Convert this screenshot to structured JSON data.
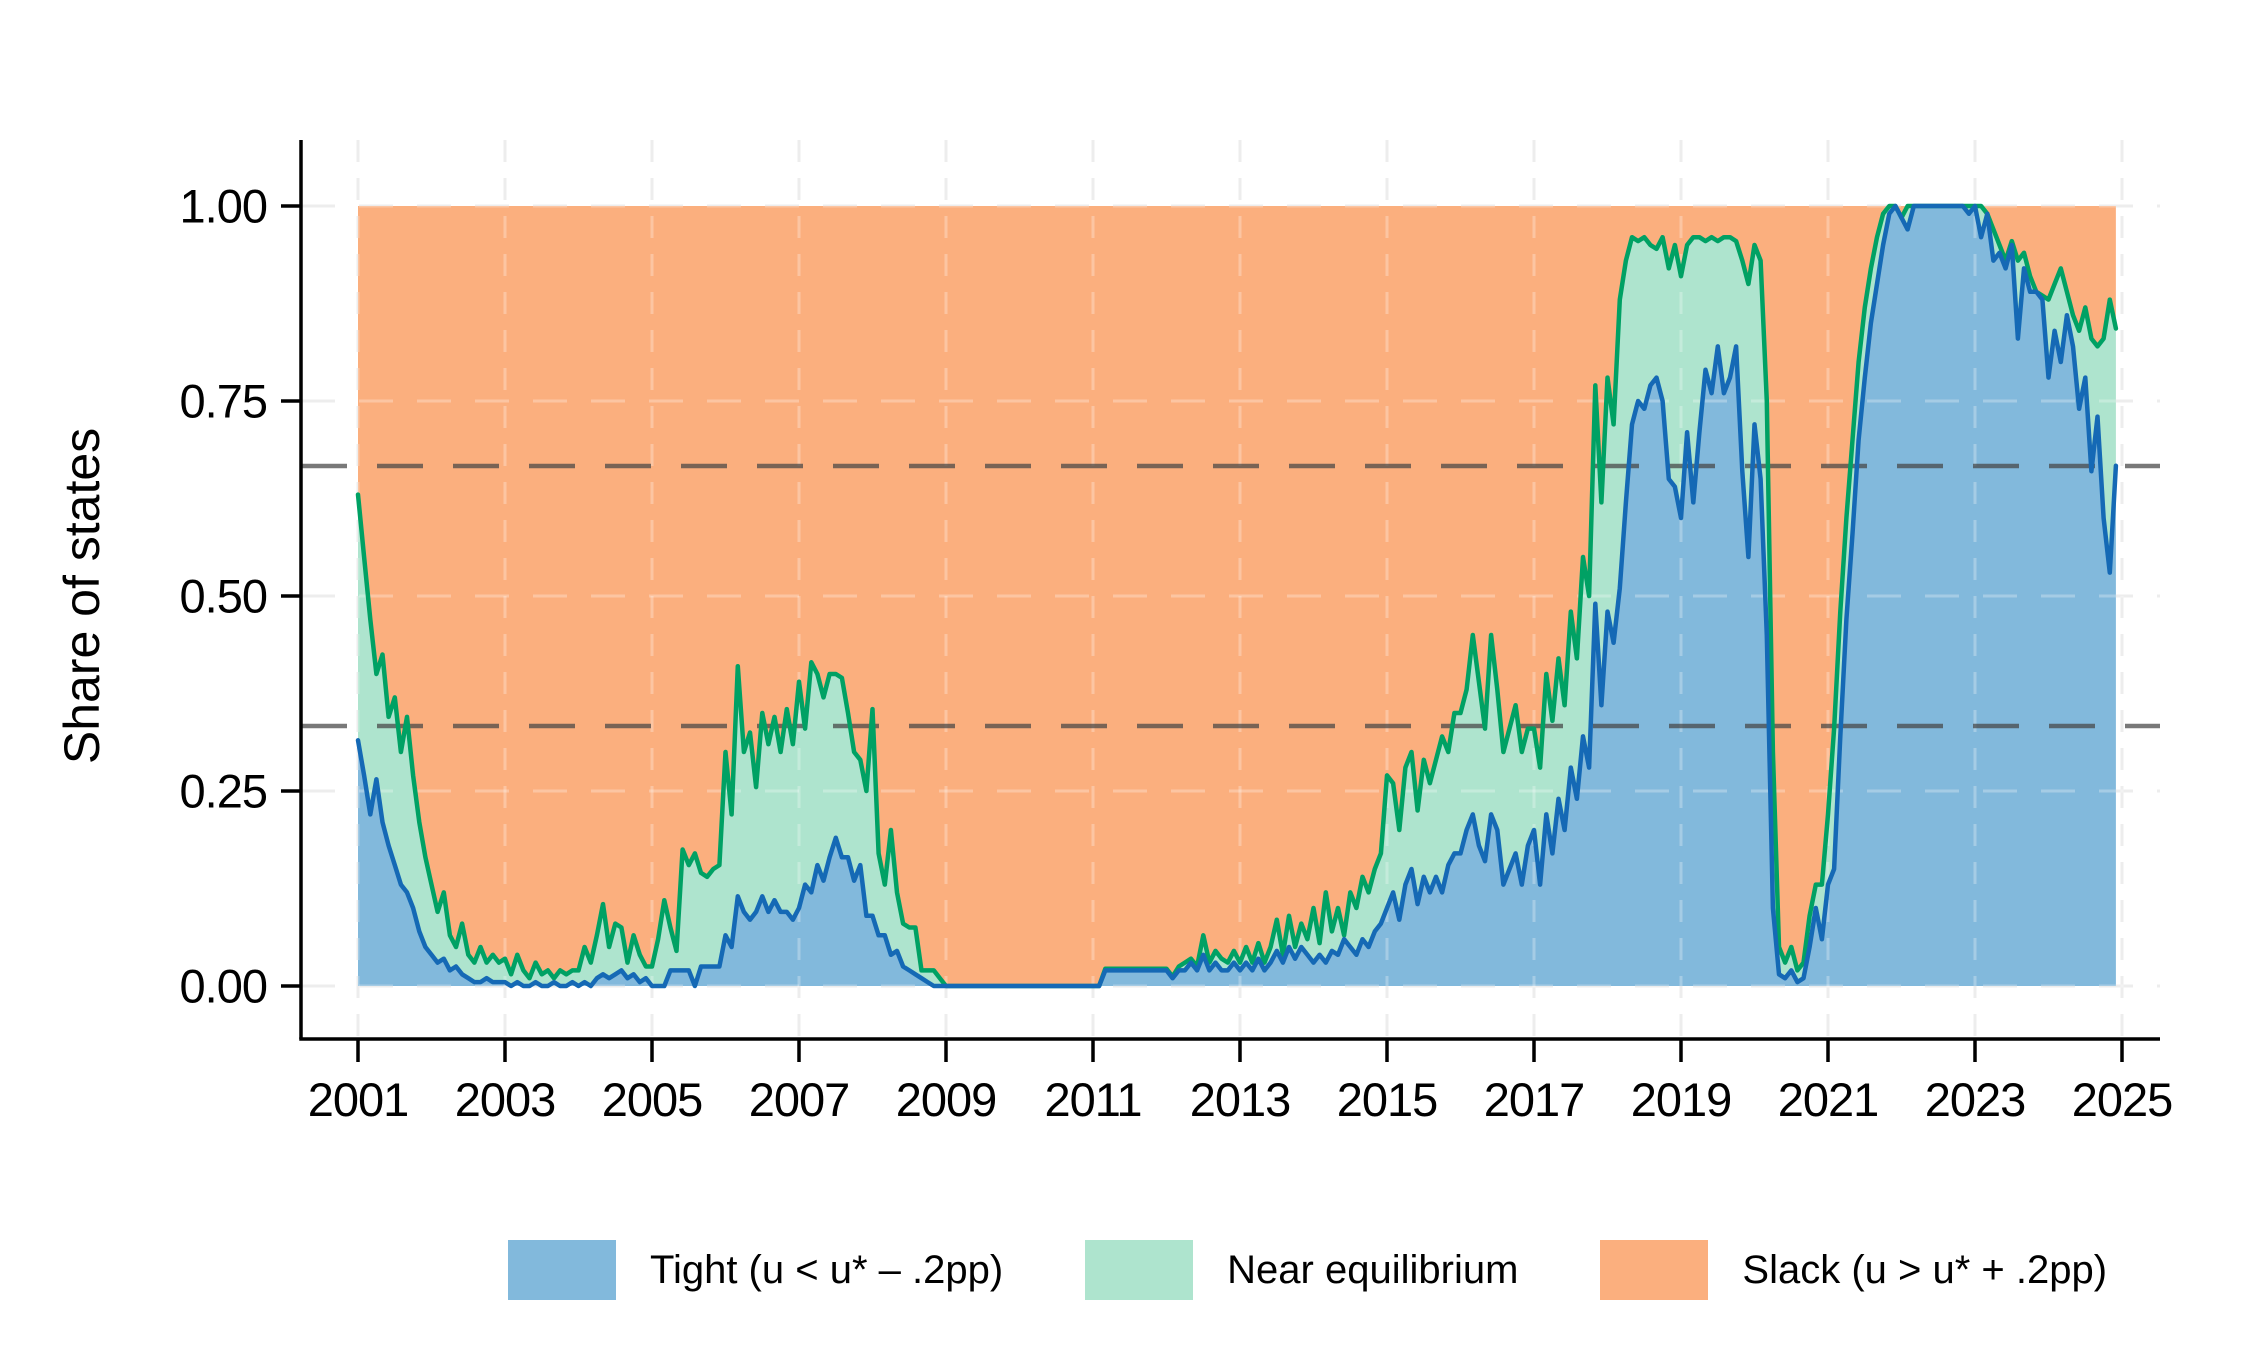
{
  "figure": {
    "ylabel": "Share of states",
    "background": "#ffffff"
  },
  "axes": {
    "y_ticks": [
      {
        "label": "0.00",
        "value": 0.0
      },
      {
        "label": "0.25",
        "value": 0.25
      },
      {
        "label": "0.50",
        "value": 0.5
      },
      {
        "label": "0.75",
        "value": 0.75
      },
      {
        "label": "1.00",
        "value": 1.0
      }
    ],
    "x_ticks": [
      2001,
      2003,
      2005,
      2007,
      2009,
      2011,
      2013,
      2015,
      2017,
      2019,
      2021,
      2023,
      2025
    ]
  },
  "legend": {
    "items": [
      {
        "label": "Tight (u < u* – .2pp)",
        "color": "#82b9dc"
      },
      {
        "label": "Near equilibrium",
        "color": "#aee4ce"
      },
      {
        "label": "Slack (u > u* + .2pp)",
        "color": "#fbaf7e"
      }
    ]
  },
  "chart_data": {
    "type": "area",
    "subtype": "stacked_shares_monthly",
    "title": "",
    "xlabel": "",
    "ylabel": "Share of states",
    "ylim": [
      0,
      1
    ],
    "x_start_year": 2001,
    "frequency": "monthly",
    "n_months": 288,
    "x_tick_years": [
      2001,
      2003,
      2005,
      2007,
      2009,
      2011,
      2013,
      2015,
      2017,
      2019,
      2021,
      2023,
      2025
    ],
    "reference_lines": {
      "style": "dark dashed horizontal",
      "values": [
        0.3333,
        0.6667
      ]
    },
    "grid": "light dashed gridlines at x ticks and y ticks",
    "legend_position": "bottom center",
    "colors": {
      "tight_fill": "#82b9dc",
      "tight_line": "#1569b5",
      "near_fill": "#aee4ce",
      "near_line": "#00a164",
      "slack_fill": "#fbaf7e",
      "dashed_reference": "#464646",
      "light_grid": "#e7e7e7",
      "axis": "#000000"
    },
    "note": "Stacked shares sum to 1. Series below are the drawn boundaries: tight = blue line; tight_plus_near = green line; slack = 1 - tight_plus_near (orange region up to 1.00).",
    "series": [
      {
        "name": "Tight (u < u* – .2pp)",
        "role": "lower boundary (blue)",
        "values": [
          0.315,
          0.27,
          0.22,
          0.265,
          0.21,
          0.18,
          0.155,
          0.13,
          0.12,
          0.1,
          0.07,
          0.05,
          0.04,
          0.03,
          0.035,
          0.02,
          0.025,
          0.015,
          0.01,
          0.005,
          0.005,
          0.01,
          0.005,
          0.005,
          0.005,
          0,
          0.005,
          0,
          0,
          0.005,
          0,
          0,
          0.005,
          0,
          0,
          0.005,
          0,
          0.005,
          0,
          0.01,
          0.015,
          0.01,
          0.015,
          0.02,
          0.01,
          0.015,
          0.005,
          0.01,
          0,
          0,
          0,
          0.02,
          0.02,
          0.02,
          0.02,
          0,
          0.025,
          0.025,
          0.025,
          0.025,
          0.065,
          0.05,
          0.115,
          0.095,
          0.085,
          0.095,
          0.115,
          0.095,
          0.11,
          0.095,
          0.095,
          0.085,
          0.1,
          0.13,
          0.12,
          0.155,
          0.135,
          0.165,
          0.19,
          0.165,
          0.165,
          0.135,
          0.155,
          0.09,
          0.09,
          0.065,
          0.065,
          0.04,
          0.045,
          0.025,
          0.02,
          0.015,
          0.01,
          0.005,
          0,
          0,
          0,
          0,
          0,
          0,
          0,
          0,
          0,
          0,
          0,
          0,
          0,
          0,
          0,
          0,
          0,
          0,
          0,
          0,
          0,
          0,
          0,
          0,
          0,
          0,
          0,
          0,
          0.02,
          0.02,
          0.02,
          0.02,
          0.02,
          0.02,
          0.02,
          0.02,
          0.02,
          0.02,
          0.02,
          0.01,
          0.02,
          0.02,
          0.03,
          0.02,
          0.04,
          0.02,
          0.03,
          0.02,
          0.02,
          0.03,
          0.02,
          0.03,
          0.02,
          0.035,
          0.02,
          0.03,
          0.045,
          0.03,
          0.05,
          0.035,
          0.05,
          0.04,
          0.03,
          0.04,
          0.03,
          0.045,
          0.04,
          0.06,
          0.05,
          0.04,
          0.06,
          0.05,
          0.07,
          0.08,
          0.1,
          0.12,
          0.085,
          0.13,
          0.15,
          0.105,
          0.14,
          0.12,
          0.14,
          0.12,
          0.155,
          0.17,
          0.17,
          0.2,
          0.22,
          0.18,
          0.16,
          0.22,
          0.2,
          0.13,
          0.15,
          0.17,
          0.13,
          0.18,
          0.2,
          0.13,
          0.22,
          0.17,
          0.24,
          0.2,
          0.28,
          0.24,
          0.32,
          0.28,
          0.49,
          0.36,
          0.48,
          0.44,
          0.51,
          0.62,
          0.72,
          0.75,
          0.74,
          0.77,
          0.78,
          0.75,
          0.65,
          0.64,
          0.6,
          0.71,
          0.62,
          0.71,
          0.79,
          0.76,
          0.82,
          0.76,
          0.78,
          0.82,
          0.66,
          0.55,
          0.72,
          0.65,
          0.45,
          0.1,
          0.015,
          0.01,
          0.02,
          0.005,
          0.01,
          0.05,
          0.1,
          0.06,
          0.13,
          0.15,
          0.32,
          0.47,
          0.58,
          0.7,
          0.78,
          0.85,
          0.9,
          0.95,
          0.99,
          1,
          0.985,
          0.97,
          1,
          1,
          1,
          1,
          1,
          1,
          1,
          1,
          1,
          0.99,
          1,
          0.96,
          0.99,
          0.93,
          0.94,
          0.92,
          0.95,
          0.83,
          0.92,
          0.89,
          0.89,
          0.88,
          0.78,
          0.84,
          0.8,
          0.86,
          0.82,
          0.74,
          0.78,
          0.66,
          0.73,
          0.6,
          0.53,
          0.667
        ]
      },
      {
        "name": "Tight + Near equilibrium",
        "role": "upper boundary of mint band (green line); slack share = 1 minus these values",
        "values": [
          0.63,
          0.55,
          0.47,
          0.4,
          0.425,
          0.345,
          0.37,
          0.3,
          0.345,
          0.27,
          0.21,
          0.165,
          0.13,
          0.095,
          0.12,
          0.065,
          0.05,
          0.08,
          0.04,
          0.03,
          0.05,
          0.03,
          0.04,
          0.03,
          0.035,
          0.015,
          0.04,
          0.02,
          0.01,
          0.03,
          0.015,
          0.02,
          0.01,
          0.02,
          0.015,
          0.02,
          0.02,
          0.05,
          0.03,
          0.065,
          0.105,
          0.05,
          0.08,
          0.075,
          0.03,
          0.065,
          0.04,
          0.025,
          0.025,
          0.06,
          0.11,
          0.075,
          0.045,
          0.175,
          0.155,
          0.17,
          0.145,
          0.14,
          0.15,
          0.155,
          0.3,
          0.22,
          0.41,
          0.3,
          0.325,
          0.255,
          0.35,
          0.31,
          0.345,
          0.3,
          0.355,
          0.31,
          0.39,
          0.33,
          0.415,
          0.4,
          0.37,
          0.4,
          0.4,
          0.395,
          0.35,
          0.3,
          0.29,
          0.25,
          0.355,
          0.17,
          0.13,
          0.2,
          0.12,
          0.08,
          0.075,
          0.075,
          0.02,
          0.02,
          0.02,
          0.01,
          0,
          0,
          0,
          0,
          0,
          0,
          0,
          0,
          0,
          0,
          0,
          0,
          0,
          0,
          0,
          0,
          0,
          0,
          0,
          0,
          0,
          0,
          0,
          0,
          0,
          0,
          0.022,
          0.022,
          0.022,
          0.022,
          0.022,
          0.022,
          0.022,
          0.022,
          0.022,
          0.022,
          0.022,
          0.012,
          0.025,
          0.03,
          0.035,
          0.025,
          0.065,
          0.03,
          0.045,
          0.035,
          0.03,
          0.045,
          0.03,
          0.05,
          0.03,
          0.055,
          0.03,
          0.05,
          0.085,
          0.04,
          0.09,
          0.05,
          0.08,
          0.06,
          0.1,
          0.055,
          0.12,
          0.07,
          0.1,
          0.065,
          0.12,
          0.1,
          0.14,
          0.12,
          0.15,
          0.17,
          0.27,
          0.26,
          0.2,
          0.28,
          0.3,
          0.225,
          0.29,
          0.26,
          0.29,
          0.32,
          0.3,
          0.35,
          0.35,
          0.38,
          0.45,
          0.39,
          0.33,
          0.45,
          0.38,
          0.3,
          0.33,
          0.36,
          0.3,
          0.33,
          0.33,
          0.28,
          0.4,
          0.34,
          0.42,
          0.36,
          0.48,
          0.42,
          0.55,
          0.5,
          0.77,
          0.62,
          0.78,
          0.72,
          0.88,
          0.93,
          0.96,
          0.955,
          0.96,
          0.95,
          0.945,
          0.96,
          0.92,
          0.95,
          0.91,
          0.95,
          0.96,
          0.96,
          0.955,
          0.96,
          0.955,
          0.96,
          0.96,
          0.955,
          0.93,
          0.9,
          0.95,
          0.93,
          0.75,
          0.3,
          0.05,
          0.03,
          0.05,
          0.02,
          0.03,
          0.09,
          0.13,
          0.13,
          0.22,
          0.33,
          0.48,
          0.6,
          0.7,
          0.8,
          0.87,
          0.92,
          0.96,
          0.99,
          1,
          1,
          0.985,
          1,
          1,
          1,
          1,
          1,
          1,
          1,
          1,
          1,
          1,
          1,
          1,
          1,
          0.99,
          0.97,
          0.95,
          0.93,
          0.955,
          0.93,
          0.94,
          0.91,
          0.89,
          0.885,
          0.88,
          0.9,
          0.92,
          0.89,
          0.86,
          0.84,
          0.87,
          0.83,
          0.82,
          0.83,
          0.88,
          0.843
        ]
      }
    ]
  }
}
